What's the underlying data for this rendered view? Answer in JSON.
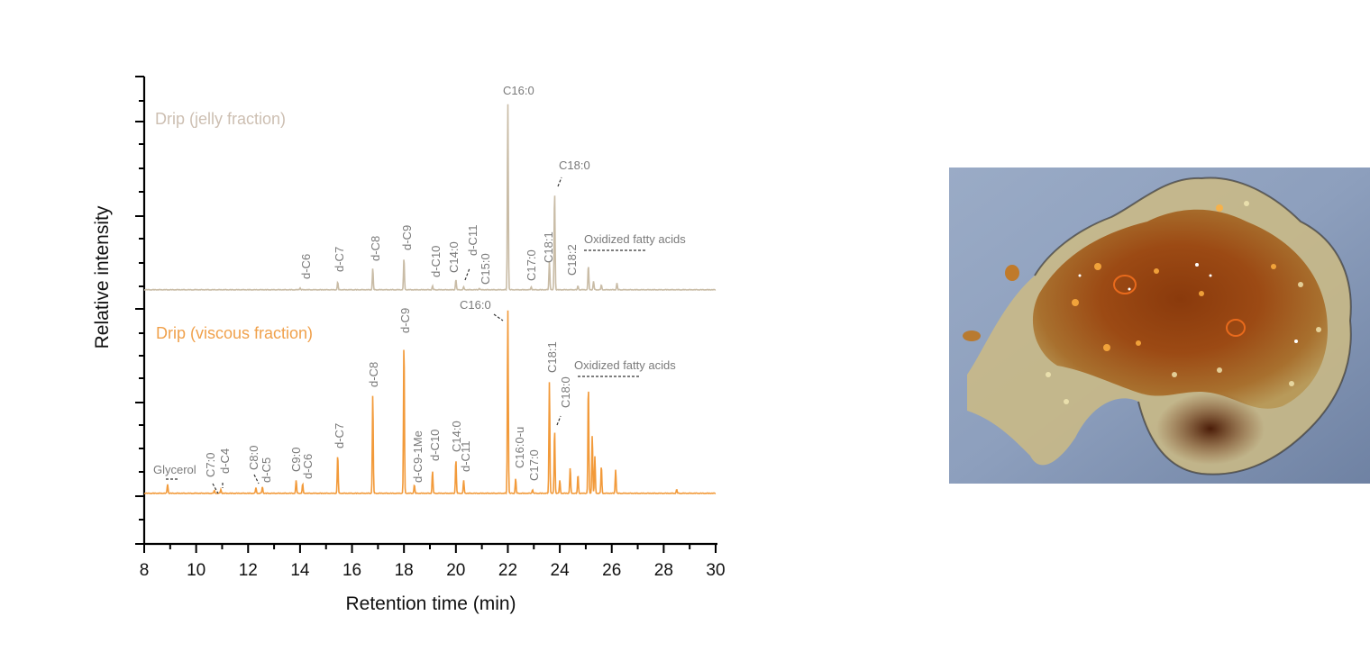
{
  "chart_data": {
    "type": "line",
    "title": "",
    "xlabel": "Retention time (min)",
    "ylabel": "Relative intensity",
    "xlim": [
      8,
      30
    ],
    "x_ticks": [
      8,
      10,
      12,
      14,
      16,
      18,
      20,
      22,
      24,
      26,
      28,
      30
    ],
    "y_tick_labels": false,
    "grid": false,
    "legend_position": "inline text labels, upper-left of each trace",
    "series": [
      {
        "name": "Drip (jelly fraction)",
        "color": "#c9bca6",
        "label_color": "#cdbfb2",
        "peaks": [
          {
            "x": 14.0,
            "y": 1.0,
            "label": "d-C6"
          },
          {
            "x": 15.45,
            "y": 4.0,
            "label": "d-C7"
          },
          {
            "x": 16.8,
            "y": 11.5,
            "label": "d-C8"
          },
          {
            "x": 18.0,
            "y": 17.0,
            "label": "d-C9"
          },
          {
            "x": 19.1,
            "y": 2.0,
            "label": "d-C10"
          },
          {
            "x": 20.0,
            "y": 5.5,
            "label": "C14:0"
          },
          {
            "x": 20.3,
            "y": 1.5,
            "label": "d-C11"
          },
          {
            "x": 20.9,
            "y": 0.8,
            "label": "C15:0"
          },
          {
            "x": 22.0,
            "y": 100,
            "label": "C16:0"
          },
          {
            "x": 22.9,
            "y": 1.5,
            "label": "C17:0"
          },
          {
            "x": 23.6,
            "y": 15.5,
            "label": "C18:1"
          },
          {
            "x": 23.8,
            "y": 53.5,
            "label": "C18:0"
          },
          {
            "x": 24.7,
            "y": 2.0,
            "label": "C18:2"
          },
          {
            "x": 25.1,
            "y": 13.0,
            "label": "Oxidized fatty acids"
          },
          {
            "x": 25.3,
            "y": 4.5
          },
          {
            "x": 25.6,
            "y": 2.5
          },
          {
            "x": 26.2,
            "y": 3.5
          }
        ],
        "annotations": [
          "Oxidized fatty acids (dashed bracket ~25.2–27.0 min)"
        ]
      },
      {
        "name": "Drip (viscous fraction)",
        "color": "#f29a3a",
        "label_color": "#f0a14c",
        "peaks": [
          {
            "x": 8.9,
            "y": 5.0,
            "label": "Glycerol"
          },
          {
            "x": 10.7,
            "y": 1.5,
            "label": "C7:0"
          },
          {
            "x": 10.95,
            "y": 2.0,
            "label": "d-C4"
          },
          {
            "x": 12.3,
            "y": 3.0,
            "label": "C8:0"
          },
          {
            "x": 12.55,
            "y": 3.5,
            "label": "d-C5"
          },
          {
            "x": 13.85,
            "y": 7.0,
            "label": "C9:0"
          },
          {
            "x": 14.1,
            "y": 5.0,
            "label": "d-C6"
          },
          {
            "x": 15.45,
            "y": 21.0,
            "label": "d-C7"
          },
          {
            "x": 16.8,
            "y": 54.0,
            "label": "d-C8"
          },
          {
            "x": 18.0,
            "y": 83.0,
            "label": "d-C9"
          },
          {
            "x": 18.4,
            "y": 4.5,
            "label": "d-C9-1Me"
          },
          {
            "x": 19.1,
            "y": 12.0,
            "label": "d-C10"
          },
          {
            "x": 20.0,
            "y": 18.5,
            "label": "C14:0"
          },
          {
            "x": 20.3,
            "y": 7.0,
            "label": "d-C11"
          },
          {
            "x": 22.0,
            "y": 100,
            "label": "C16:0"
          },
          {
            "x": 22.3,
            "y": 8.0,
            "label": "C16:0-u"
          },
          {
            "x": 22.95,
            "y": 2.0,
            "label": "C17:0"
          },
          {
            "x": 23.6,
            "y": 61.0,
            "label": "C18:1"
          },
          {
            "x": 23.8,
            "y": 35.0,
            "label": "C18:0"
          },
          {
            "x": 24.0,
            "y": 7.0
          },
          {
            "x": 24.4,
            "y": 14.0
          },
          {
            "x": 24.7,
            "y": 10.0
          },
          {
            "x": 25.1,
            "y": 60.0,
            "label": "Oxidized fatty acids"
          },
          {
            "x": 25.25,
            "y": 32.0
          },
          {
            "x": 25.35,
            "y": 20.0
          },
          {
            "x": 25.6,
            "y": 15.0
          },
          {
            "x": 26.15,
            "y": 13.0
          },
          {
            "x": 28.5,
            "y": 2.0
          }
        ],
        "annotations": [
          "Oxidized fatty acids (dashed bracket ~25.0–27.0 min)"
        ]
      }
    ]
  },
  "figure": {
    "xlabel": "Retention time (min)",
    "ylabel": "Relative intensity",
    "trace_labels": {
      "top": "Drip (jelly fraction)",
      "bottom": "Drip (viscous fraction)"
    },
    "oxidized_label": "Oxidized fatty acids",
    "photo": {
      "description": "Photograph of drip sample: orange-brown viscous mass with pale translucent jelly edges on blue-grey background"
    }
  }
}
